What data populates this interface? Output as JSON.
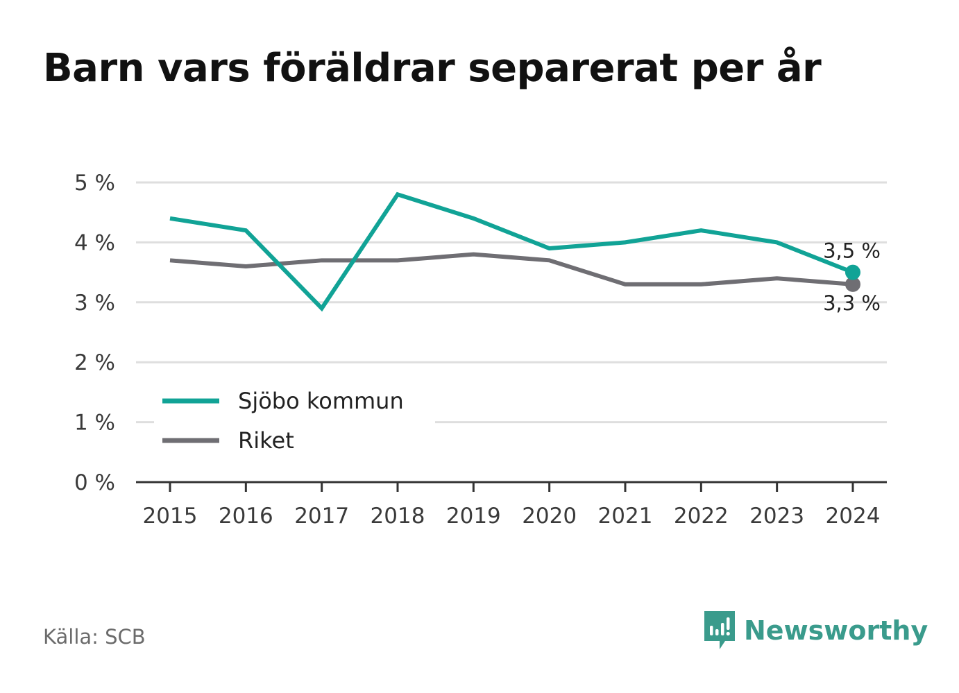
{
  "title": "Barn vars föräldrar separerat per år",
  "source": "Källa: SCB",
  "brand": {
    "name": "Newsworthy",
    "icon": "newsworthy-logo-icon",
    "color": "#3a9b8c"
  },
  "chart_data": {
    "type": "line",
    "x": [
      "2015",
      "2016",
      "2017",
      "2018",
      "2019",
      "2020",
      "2021",
      "2022",
      "2023",
      "2024"
    ],
    "series": [
      {
        "name": "Sjöbo kommun",
        "color": "#11a396",
        "values": [
          4.4,
          4.2,
          2.9,
          4.8,
          4.4,
          3.9,
          4.0,
          4.2,
          4.0,
          3.5
        ],
        "end_label": "3,5 %"
      },
      {
        "name": "Riket",
        "color": "#6f6e73",
        "values": [
          3.7,
          3.6,
          3.7,
          3.7,
          3.8,
          3.7,
          3.3,
          3.3,
          3.4,
          3.3
        ],
        "end_label": "3,3 %"
      }
    ],
    "yticks": [
      {
        "value": 0,
        "label": "0 %"
      },
      {
        "value": 1,
        "label": "1 %"
      },
      {
        "value": 2,
        "label": "2 %"
      },
      {
        "value": 3,
        "label": "3 %"
      },
      {
        "value": 4,
        "label": "4 %"
      },
      {
        "value": 5,
        "label": "5 %"
      }
    ],
    "ylim": [
      0,
      5
    ],
    "grid": true,
    "legend": "bottom-left"
  }
}
